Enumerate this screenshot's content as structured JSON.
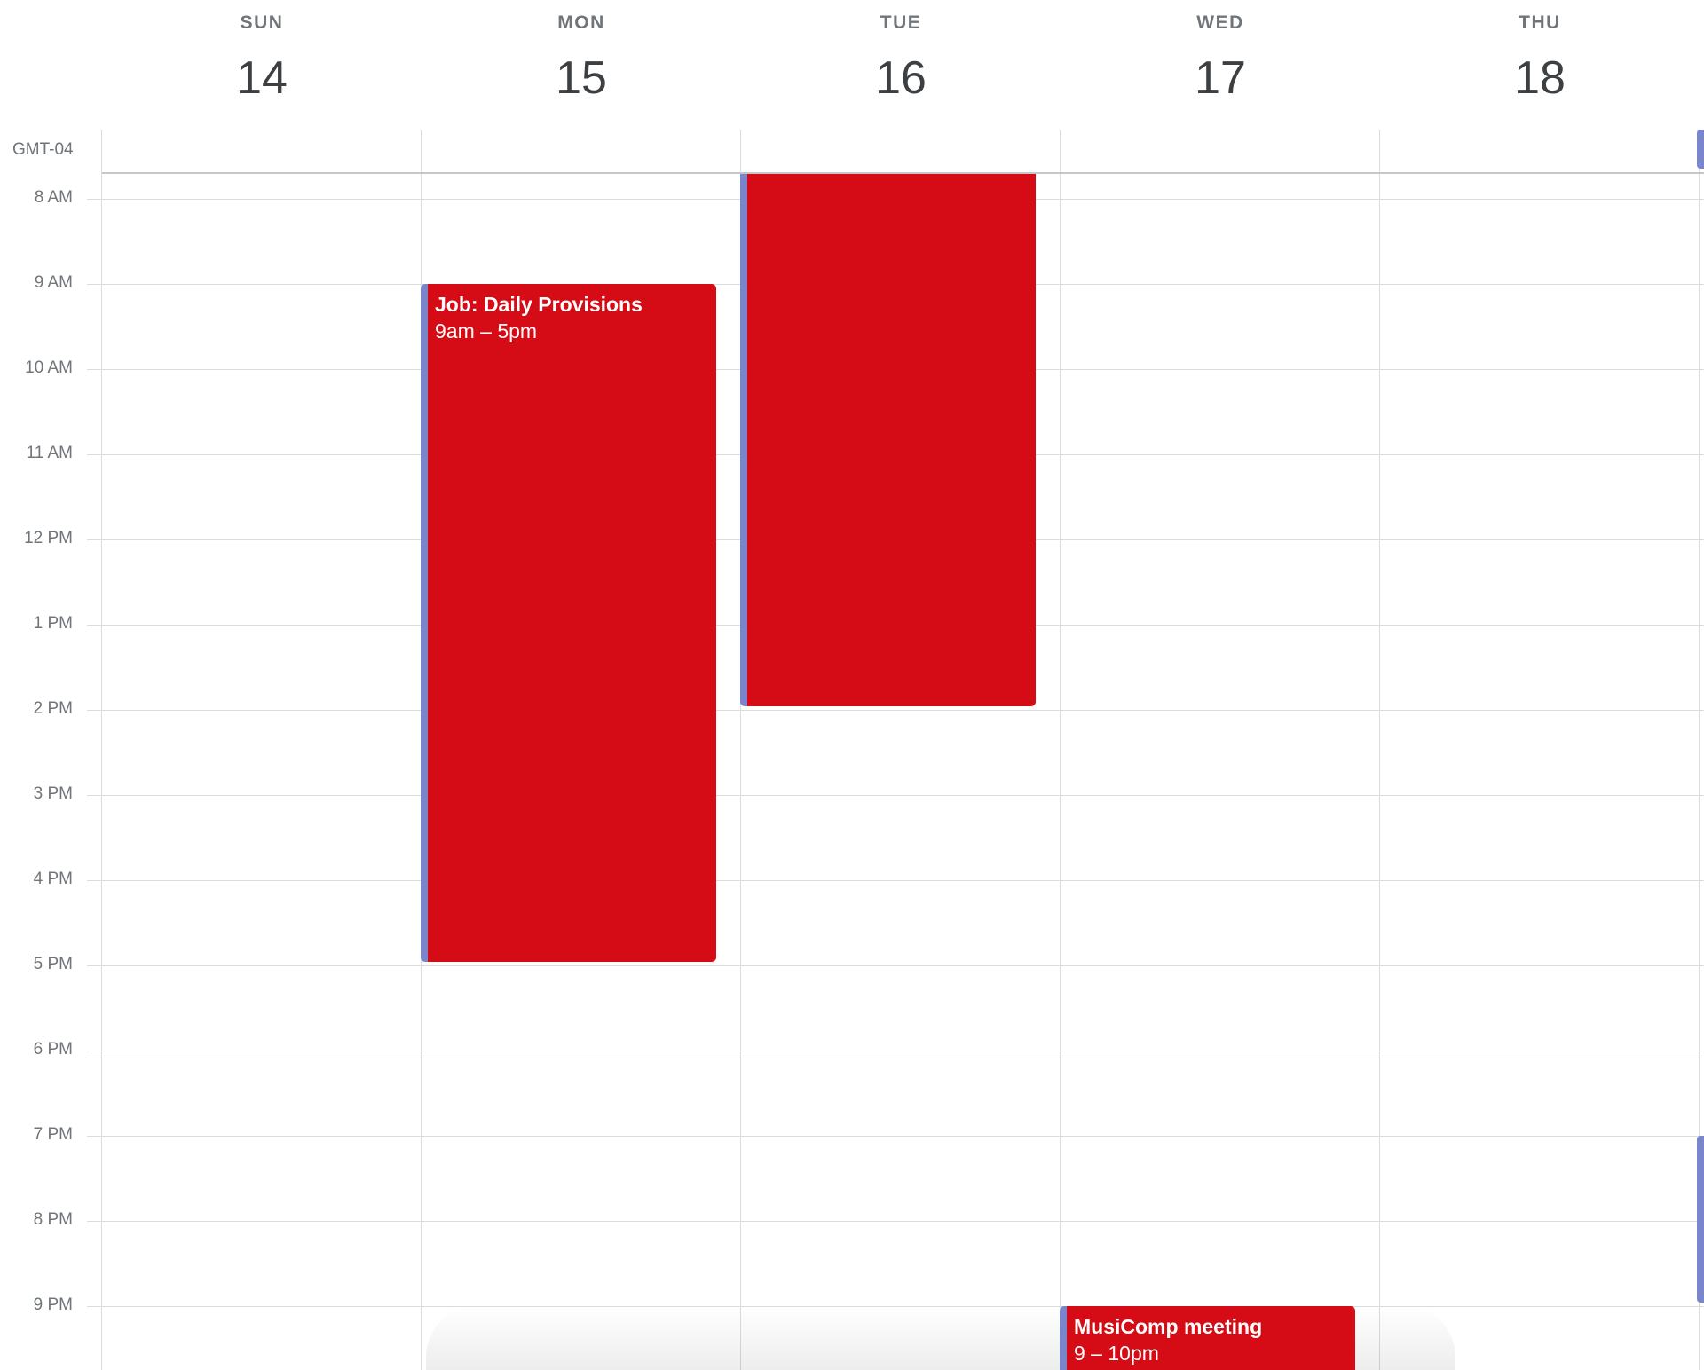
{
  "header": {
    "days": [
      {
        "name": "SUN",
        "number": "14"
      },
      {
        "name": "MON",
        "number": "15"
      },
      {
        "name": "TUE",
        "number": "16"
      },
      {
        "name": "WED",
        "number": "17"
      },
      {
        "name": "THU",
        "number": "18"
      }
    ],
    "timezone": "GMT-04"
  },
  "time_gutter": {
    "hours": [
      "8 AM",
      "9 AM",
      "10 AM",
      "11 AM",
      "12 PM",
      "1 PM",
      "2 PM",
      "3 PM",
      "4 PM",
      "5 PM",
      "6 PM",
      "7 PM",
      "8 PM",
      "9 PM"
    ]
  },
  "events": [
    {
      "title": "Job: Daily Provisions",
      "time": "9am – 5pm",
      "color": "#d50b16",
      "stripe_color": "#7986cb"
    },
    {
      "title": "",
      "time": "",
      "color": "#d50b16",
      "stripe_color": "#7986cb"
    },
    {
      "title": "MusiComp meeting",
      "time": "9 – 10pm",
      "color": "#d50b16",
      "stripe_color": "#7986cb"
    }
  ],
  "colors": {
    "event_red": "#d50b16",
    "event_stripe": "#7986cb",
    "grid_line": "#dadce0",
    "label_gray": "#70757a",
    "day_number": "#3c4043"
  }
}
